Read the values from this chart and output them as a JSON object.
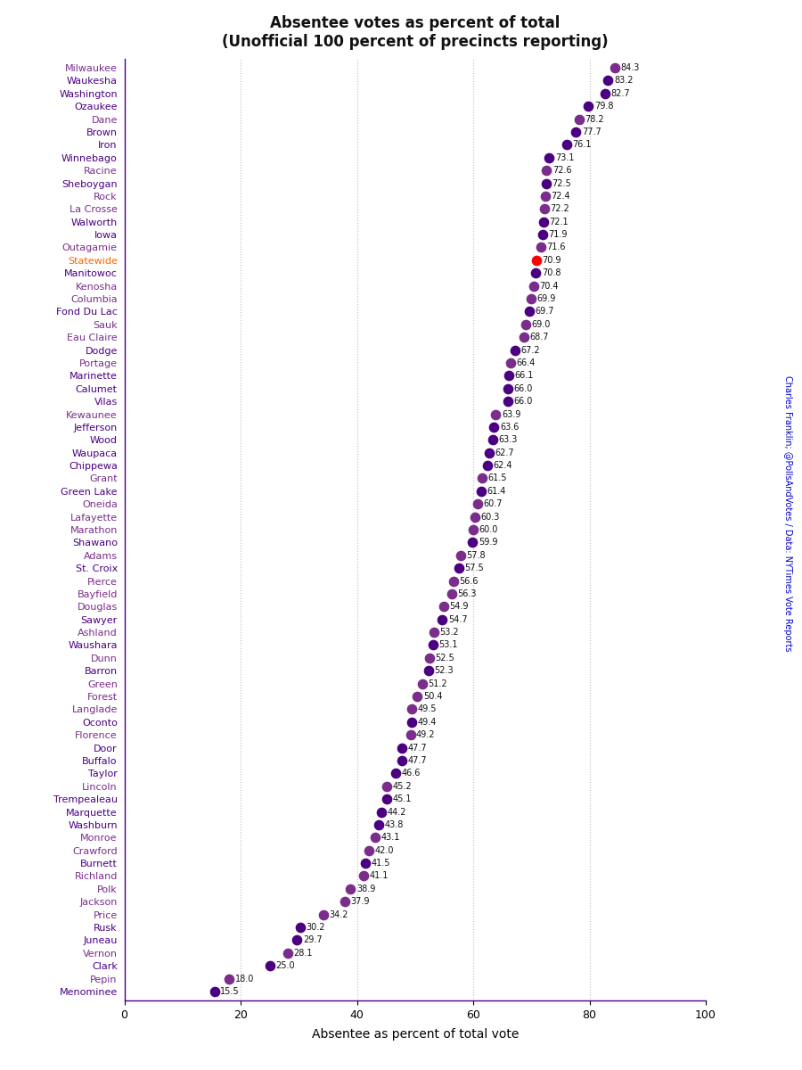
{
  "title_line1": "Absentee votes as percent of total",
  "title_line2": "(Unofficial 100 percent of precincts reporting)",
  "xlabel": "Absentee as percent of total vote",
  "watermark": "Charles Franklin; @PollsAndVotes / Data: NYTimes Vote Reports",
  "counties": [
    "Milwaukee",
    "Waukesha",
    "Washington",
    "Ozaukee",
    "Dane",
    "Brown",
    "Iron",
    "Winnebago",
    "Racine",
    "Sheboygan",
    "Rock",
    "La Crosse",
    "Walworth",
    "Iowa",
    "Outagamie",
    "Statewide",
    "Manitowoc",
    "Kenosha",
    "Columbia",
    "Fond Du Lac",
    "Sauk",
    "Eau Claire",
    "Dodge",
    "Portage",
    "Marinette",
    "Calumet",
    "Vilas",
    "Kewaunee",
    "Jefferson",
    "Wood",
    "Waupaca",
    "Chippewa",
    "Grant",
    "Green Lake",
    "Oneida",
    "Lafayette",
    "Marathon",
    "Shawano",
    "Adams",
    "St. Croix",
    "Pierce",
    "Bayfield",
    "Douglas",
    "Sawyer",
    "Ashland",
    "Waushara",
    "Dunn",
    "Barron",
    "Green",
    "Forest",
    "Langlade",
    "Oconto",
    "Florence",
    "Door",
    "Buffalo",
    "Taylor",
    "Lincoln",
    "Trempealeau",
    "Marquette",
    "Washburn",
    "Monroe",
    "Crawford",
    "Burnett",
    "Richland",
    "Polk",
    "Jackson",
    "Price",
    "Rusk",
    "Juneau",
    "Vernon",
    "Clark",
    "Pepin",
    "Menominee"
  ],
  "values": [
    84.3,
    83.2,
    82.7,
    79.8,
    78.2,
    77.7,
    76.1,
    73.1,
    72.6,
    72.5,
    72.4,
    72.2,
    72.1,
    71.9,
    71.6,
    70.9,
    70.8,
    70.4,
    69.9,
    69.7,
    69.0,
    68.7,
    67.2,
    66.4,
    66.1,
    66.0,
    66.0,
    63.9,
    63.6,
    63.3,
    62.7,
    62.4,
    61.5,
    61.4,
    60.7,
    60.3,
    60.0,
    59.9,
    57.8,
    57.5,
    56.6,
    56.3,
    54.9,
    54.7,
    53.2,
    53.1,
    52.5,
    52.3,
    51.2,
    50.4,
    49.5,
    49.4,
    49.2,
    47.7,
    47.7,
    46.6,
    45.2,
    45.1,
    44.2,
    43.8,
    43.1,
    42.0,
    41.5,
    41.1,
    38.9,
    37.9,
    34.2,
    30.2,
    29.7,
    28.1,
    25.0,
    18.0,
    15.5
  ],
  "dot_color_default": "#4B0082",
  "statewide_dot_color": "#FF0000",
  "label_colors": {
    "Milwaukee": "#7B2D8B",
    "Waukesha": "#4B0082",
    "Washington": "#4B0082",
    "Ozaukee": "#4B0082",
    "Dane": "#7B2D8B",
    "Brown": "#4B0082",
    "Iron": "#4B0082",
    "Winnebago": "#4B0082",
    "Racine": "#7B2D8B",
    "Sheboygan": "#4B0082",
    "Rock": "#7B2D8B",
    "La Crosse": "#7B2D8B",
    "Walworth": "#4B0082",
    "Iowa": "#4B0082",
    "Outagamie": "#7B2D8B",
    "Statewide": "#FF6600",
    "Manitowoc": "#4B0082",
    "Kenosha": "#7B2D8B",
    "Columbia": "#7B2D8B",
    "Fond Du Lac": "#4B0082",
    "Sauk": "#7B2D8B",
    "Eau Claire": "#7B2D8B",
    "Dodge": "#4B0082",
    "Portage": "#7B2D8B",
    "Marinette": "#4B0082",
    "Calumet": "#4B0082",
    "Vilas": "#4B0082",
    "Kewaunee": "#7B2D8B",
    "Jefferson": "#4B0082",
    "Wood": "#4B0082",
    "Waupaca": "#4B0082",
    "Chippewa": "#4B0082",
    "Grant": "#7B2D8B",
    "Green Lake": "#4B0082",
    "Oneida": "#7B2D8B",
    "Lafayette": "#7B2D8B",
    "Marathon": "#7B2D8B",
    "Shawano": "#4B0082",
    "Adams": "#7B2D8B",
    "St. Croix": "#4B0082",
    "Pierce": "#7B2D8B",
    "Bayfield": "#7B2D8B",
    "Douglas": "#7B2D8B",
    "Sawyer": "#4B0082",
    "Ashland": "#7B2D8B",
    "Waushara": "#4B0082",
    "Dunn": "#7B2D8B",
    "Barron": "#4B0082",
    "Green": "#7B2D8B",
    "Forest": "#7B2D8B",
    "Langlade": "#7B2D8B",
    "Oconto": "#4B0082",
    "Florence": "#7B2D8B",
    "Door": "#4B0082",
    "Buffalo": "#4B0082",
    "Taylor": "#4B0082",
    "Lincoln": "#7B2D8B",
    "Trempealeau": "#4B0082",
    "Marquette": "#4B0082",
    "Washburn": "#4B0082",
    "Monroe": "#7B2D8B",
    "Crawford": "#7B2D8B",
    "Burnett": "#4B0082",
    "Richland": "#7B2D8B",
    "Polk": "#7B2D8B",
    "Jackson": "#7B2D8B",
    "Price": "#7B2D8B",
    "Rusk": "#4B0082",
    "Juneau": "#4B0082",
    "Vernon": "#7B2D8B",
    "Clark": "#4B0082",
    "Pepin": "#7B2D8B",
    "Menominee": "#4B0082"
  },
  "dot_colors": {
    "Milwaukee": "#7B2D8B",
    "Waukesha": "#4B0082",
    "Washington": "#4B0082",
    "Ozaukee": "#4B0082",
    "Dane": "#7B2D8B",
    "Brown": "#4B0082",
    "Iron": "#4B0082",
    "Winnebago": "#4B0082",
    "Racine": "#7B2D8B",
    "Sheboygan": "#4B0082",
    "Rock": "#7B2D8B",
    "La Crosse": "#7B2D8B",
    "Walworth": "#4B0082",
    "Iowa": "#4B0082",
    "Outagamie": "#7B2D8B",
    "Statewide": "#FF0000",
    "Manitowoc": "#4B0082",
    "Kenosha": "#7B2D8B",
    "Columbia": "#7B2D8B",
    "Fond Du Lac": "#4B0082",
    "Sauk": "#7B2D8B",
    "Eau Claire": "#7B2D8B",
    "Dodge": "#4B0082",
    "Portage": "#7B2D8B",
    "Marinette": "#4B0082",
    "Calumet": "#4B0082",
    "Vilas": "#4B0082",
    "Kewaunee": "#7B2D8B",
    "Jefferson": "#4B0082",
    "Wood": "#4B0082",
    "Waupaca": "#4B0082",
    "Chippewa": "#4B0082",
    "Grant": "#7B2D8B",
    "Green Lake": "#4B0082",
    "Oneida": "#7B2D8B",
    "Lafayette": "#7B2D8B",
    "Marathon": "#7B2D8B",
    "Shawano": "#4B0082",
    "Adams": "#7B2D8B",
    "St. Croix": "#4B0082",
    "Pierce": "#7B2D8B",
    "Bayfield": "#7B2D8B",
    "Douglas": "#7B2D8B",
    "Sawyer": "#4B0082",
    "Ashland": "#7B2D8B",
    "Waushara": "#4B0082",
    "Dunn": "#7B2D8B",
    "Barron": "#4B0082",
    "Green": "#7B2D8B",
    "Forest": "#7B2D8B",
    "Langlade": "#7B2D8B",
    "Oconto": "#4B0082",
    "Florence": "#7B2D8B",
    "Door": "#4B0082",
    "Buffalo": "#4B0082",
    "Taylor": "#4B0082",
    "Lincoln": "#7B2D8B",
    "Trempealeau": "#4B0082",
    "Marquette": "#4B0082",
    "Washburn": "#4B0082",
    "Monroe": "#7B2D8B",
    "Crawford": "#7B2D8B",
    "Burnett": "#4B0082",
    "Richland": "#7B2D8B",
    "Polk": "#7B2D8B",
    "Jackson": "#7B2D8B",
    "Price": "#7B2D8B",
    "Rusk": "#4B0082",
    "Juneau": "#4B0082",
    "Vernon": "#7B2D8B",
    "Clark": "#4B0082",
    "Pepin": "#7B2D8B",
    "Menominee": "#4B0082"
  },
  "xlim": [
    0,
    100
  ],
  "xticks": [
    0,
    20,
    40,
    60,
    80,
    100
  ],
  "bg_color": "#FFFFFF",
  "grid_color": "#BBBBBB",
  "title_fontsize": 12,
  "label_fontsize": 8,
  "value_fontsize": 7
}
